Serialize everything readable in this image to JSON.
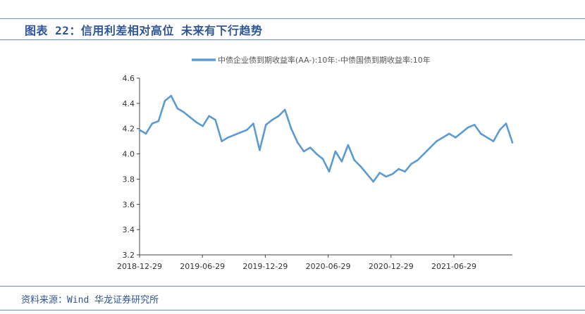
{
  "header": {
    "title": "图表 22：信用利差相对高位 未来有下行趋势"
  },
  "source": "资料来源：Wind 华龙证券研究所",
  "colors": {
    "accent": "#2f5597",
    "series": "#5b9bd5",
    "rule": "#6f8fb8"
  },
  "chart_data": {
    "type": "line",
    "title": "",
    "xlabel": "",
    "ylabel": "",
    "ylim": [
      3.2,
      4.6
    ],
    "yticks": [
      3.2,
      3.4,
      3.6,
      3.8,
      4.0,
      4.2,
      4.4,
      4.6
    ],
    "ytick_labels": [
      "3.2",
      "3.4",
      "3.6",
      "3.8",
      "4.0",
      "4.2",
      "4.4",
      "4.6"
    ],
    "xtick_labels": [
      "2018-12-29",
      "2019-06-29",
      "2019-12-29",
      "2020-06-29",
      "2020-12-29",
      "2021-06-29"
    ],
    "x_index_range": [
      0,
      59
    ],
    "legend": "top-center",
    "grid": false,
    "series": [
      {
        "name": "中债企业债到期收益率(AA-):10年:-中债国债到期收益率:10年",
        "x": [
          0,
          1,
          2,
          3,
          4,
          5,
          6,
          7,
          8,
          9,
          10,
          11,
          12,
          13,
          14,
          15,
          16,
          17,
          18,
          19,
          20,
          21,
          22,
          23,
          24,
          25,
          26,
          27,
          28,
          29,
          30,
          31,
          32,
          33,
          34,
          35,
          36,
          37,
          38,
          39,
          40,
          41,
          42,
          43,
          44,
          45,
          46,
          47,
          48,
          49,
          50,
          51,
          52,
          53,
          54,
          55,
          56,
          57,
          58,
          59
        ],
        "values": [
          4.19,
          4.16,
          4.24,
          4.26,
          4.42,
          4.46,
          4.36,
          4.33,
          4.29,
          4.25,
          4.22,
          4.3,
          4.27,
          4.1,
          4.13,
          4.15,
          4.17,
          4.19,
          4.24,
          4.03,
          4.23,
          4.27,
          4.3,
          4.35,
          4.2,
          4.09,
          4.02,
          4.05,
          4.0,
          3.96,
          3.86,
          4.02,
          3.94,
          4.07,
          3.95,
          3.9,
          3.84,
          3.78,
          3.85,
          3.82,
          3.84,
          3.88,
          3.86,
          3.92,
          3.95,
          4.0,
          4.05,
          4.1,
          4.13,
          4.16,
          4.13,
          4.17,
          4.21,
          4.23,
          4.16,
          4.13,
          4.1,
          4.19,
          4.24,
          4.09
        ]
      }
    ]
  }
}
